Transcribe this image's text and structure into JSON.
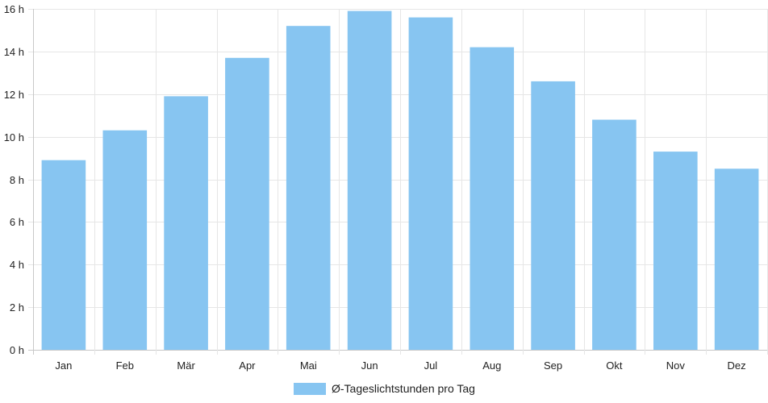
{
  "chart_data": {
    "type": "bar",
    "categories": [
      "Jan",
      "Feb",
      "Mär",
      "Apr",
      "Mai",
      "Jun",
      "Jul",
      "Aug",
      "Sep",
      "Okt",
      "Nov",
      "Dez"
    ],
    "series": [
      {
        "name": "Ø-Tageslichtstunden pro Tag",
        "values": [
          8.9,
          10.3,
          11.9,
          13.7,
          15.2,
          15.9,
          15.6,
          14.2,
          12.6,
          10.8,
          9.3,
          8.5
        ],
        "color": "#87C5F1"
      }
    ],
    "y_unit_suffix": " h",
    "ylim": [
      0,
      16
    ],
    "y_ticks": [
      0,
      2,
      4,
      6,
      8,
      10,
      12,
      14,
      16
    ],
    "grid": true,
    "legend_position": "bottom"
  }
}
